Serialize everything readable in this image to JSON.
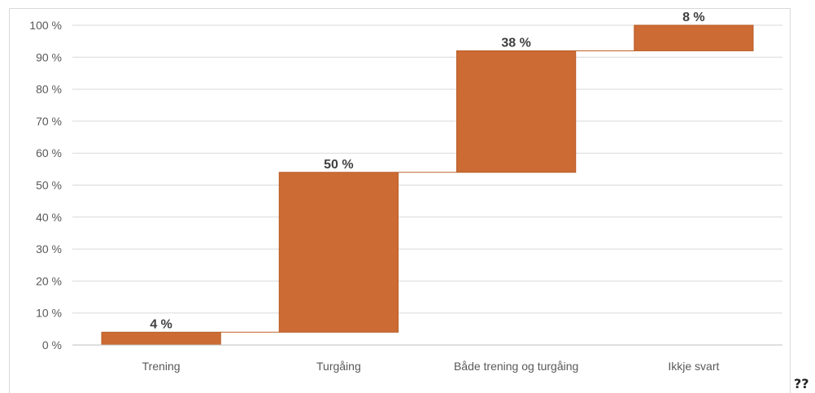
{
  "chart_data": {
    "type": "waterfall",
    "categories": [
      "Trening",
      "Turgåing",
      "Både trening og turgåing",
      "Ikkje svart"
    ],
    "values": [
      4,
      50,
      38,
      8
    ],
    "data_labels": [
      "4 %",
      "50 %",
      "38 %",
      "8 %"
    ],
    "y_ticks": [
      "0 %",
      "10 %",
      "20 %",
      "30 %",
      "40 %",
      "50 %",
      "60 %",
      "70 %",
      "80 %",
      "90 %",
      "100 %"
    ],
    "ylim": [
      0,
      100
    ],
    "grid": true,
    "legend": "none",
    "bar_color": "#cc6b33",
    "bar_edge_color": "#b85c28",
    "grid_color": "#d9d9d9",
    "connector_color": "#c0602a"
  },
  "stray_text": "??"
}
